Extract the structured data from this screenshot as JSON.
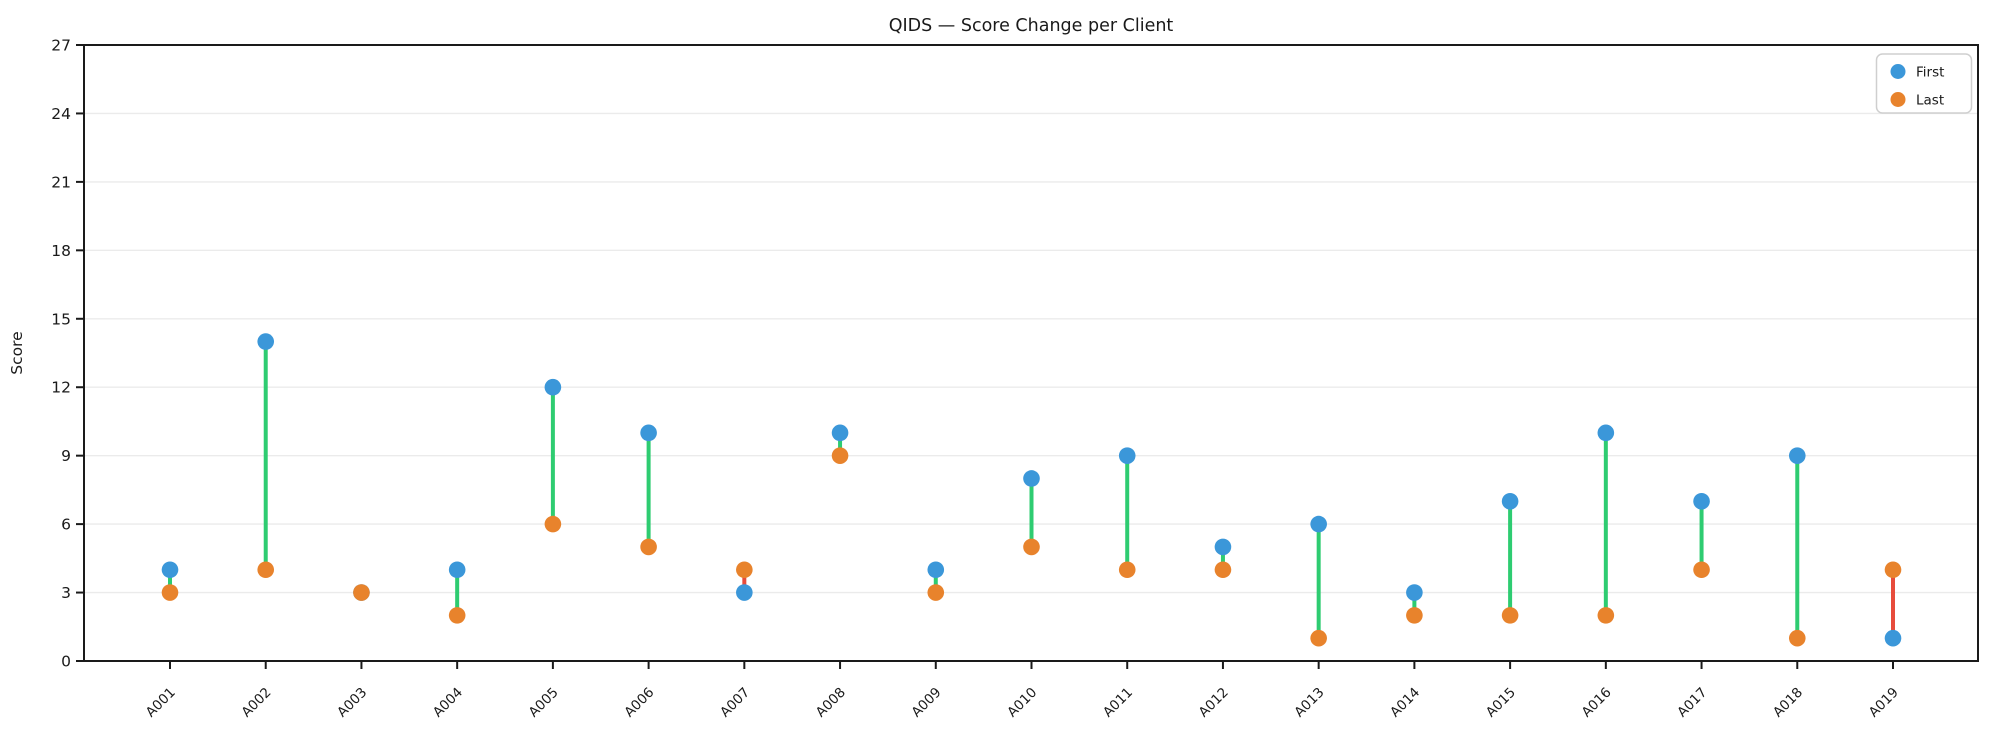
{
  "chart_data": {
    "type": "scatter",
    "subtype": "dumbbell",
    "title": "QIDS — Score Change per Client",
    "xlabel": "",
    "ylabel": "Score",
    "ylim": [
      0,
      27
    ],
    "yticks": [
      0,
      3,
      6,
      9,
      12,
      15,
      18,
      21,
      24,
      27
    ],
    "grid": "horizontal",
    "legend_position": "upper right",
    "categories": [
      "A001",
      "A002",
      "A003",
      "A004",
      "A005",
      "A006",
      "A007",
      "A008",
      "A009",
      "A010",
      "A011",
      "A012",
      "A013",
      "A014",
      "A015",
      "A016",
      "A017",
      "A018",
      "A019"
    ],
    "series": [
      {
        "name": "First",
        "color": "#3b97d9",
        "values": [
          4,
          14,
          3,
          4,
          12,
          10,
          3,
          10,
          4,
          8,
          9,
          5,
          6,
          3,
          7,
          10,
          7,
          9,
          1
        ]
      },
      {
        "name": "Last",
        "color": "#e8832c",
        "values": [
          3,
          4,
          3,
          2,
          6,
          5,
          4,
          9,
          3,
          5,
          4,
          4,
          1,
          2,
          2,
          2,
          4,
          1,
          4
        ]
      }
    ],
    "connector_colors": {
      "decreased": "#2ecc71",
      "increased": "#e74c3c"
    },
    "axis_color": "#1a1a1a",
    "grid_color": "#ebebeb",
    "legend_border_color": "#cfcfcf"
  }
}
